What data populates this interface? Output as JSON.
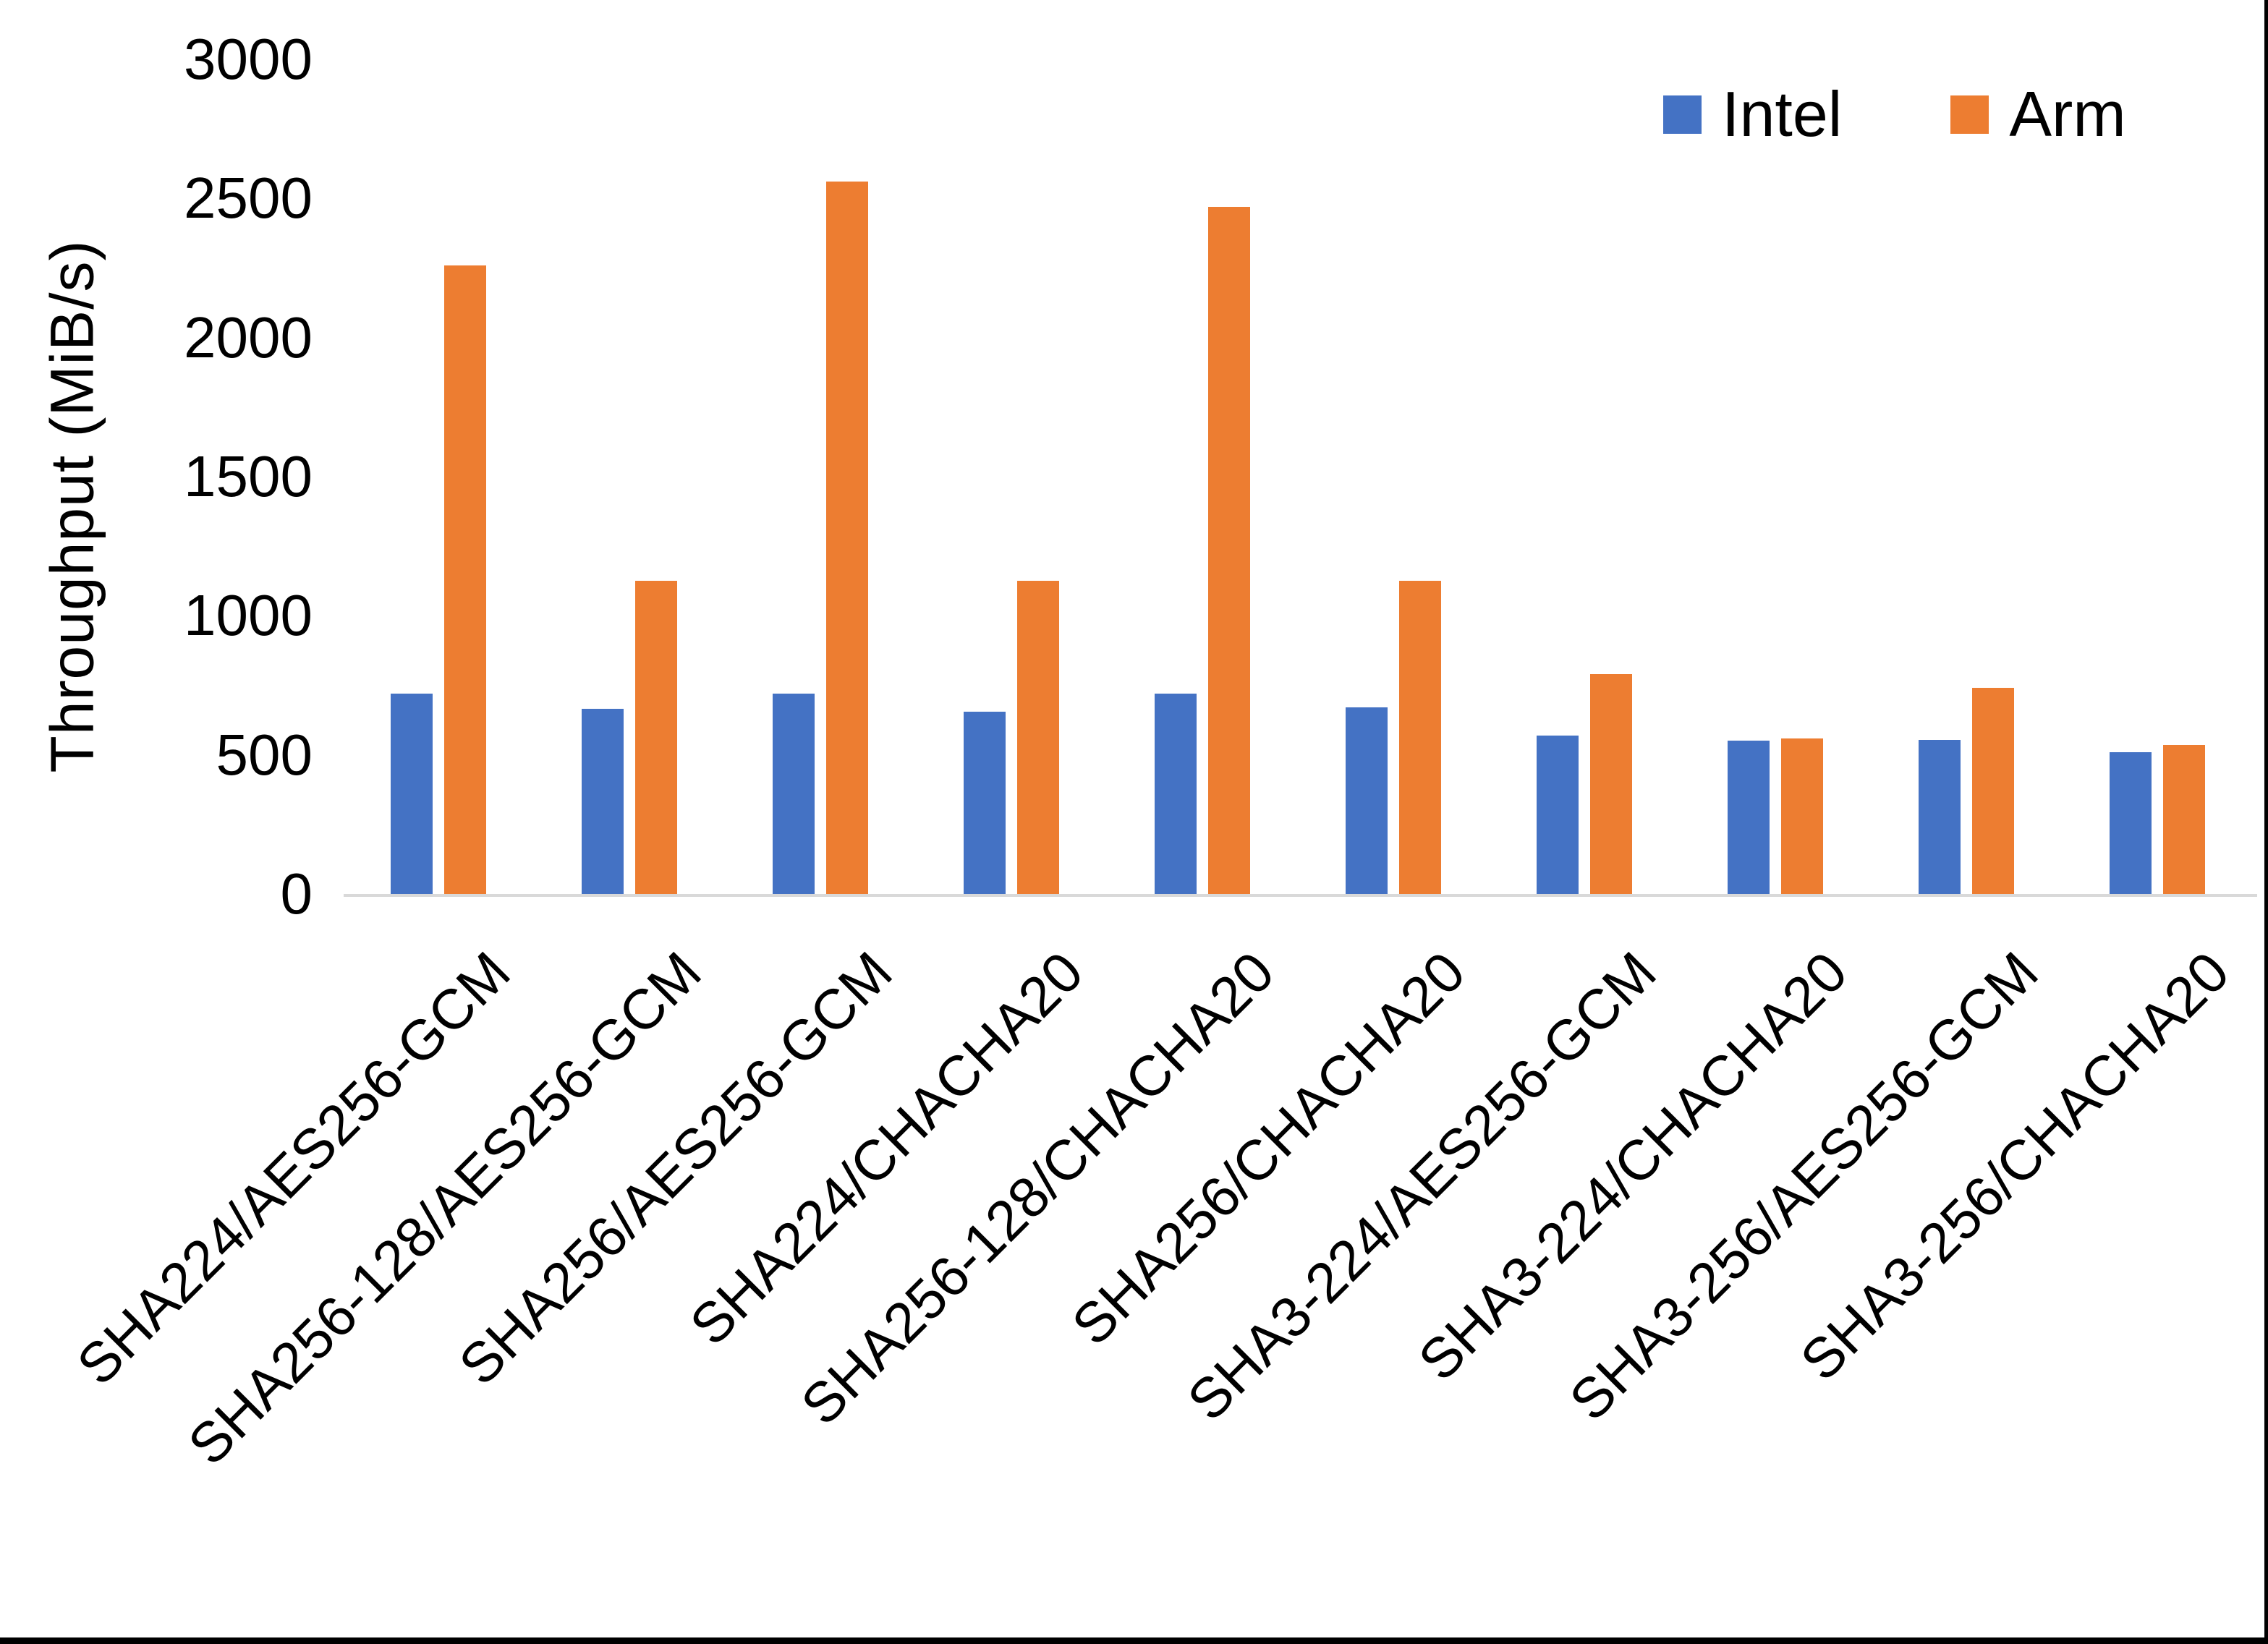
{
  "chart_data": {
    "type": "bar",
    "title": "",
    "ylabel": "Throughput (MiB/s)",
    "xlabel": "",
    "ylim": [
      0,
      3000
    ],
    "yticks": [
      0,
      500,
      1000,
      1500,
      2000,
      2500,
      3000
    ],
    "grid": false,
    "legend_position": "top-right",
    "categories": [
      "SHA224/AES256-GCM",
      "SHA256-128/AES256-GCM",
      "SHA256/AES256-GCM",
      "SHA224/CHACHA20",
      "SHA256-128/CHACHA20",
      "SHA256/CHACHA20",
      "SHA3-224/AES256-GCM",
      "SHA3-224/CHACHA20",
      "SHA3-256/AES256-GCM",
      "SHA3-256/CHACHA20"
    ],
    "series": [
      {
        "name": "Intel",
        "color": "#4472C4",
        "values": [
          720,
          665,
          720,
          655,
          720,
          670,
          570,
          550,
          555,
          510
        ]
      },
      {
        "name": "Arm",
        "color": "#ED7D31",
        "values": [
          2260,
          1125,
          2560,
          1125,
          2470,
          1125,
          790,
          560,
          740,
          535
        ]
      }
    ],
    "axis_line_color": "#D9D9D9"
  }
}
